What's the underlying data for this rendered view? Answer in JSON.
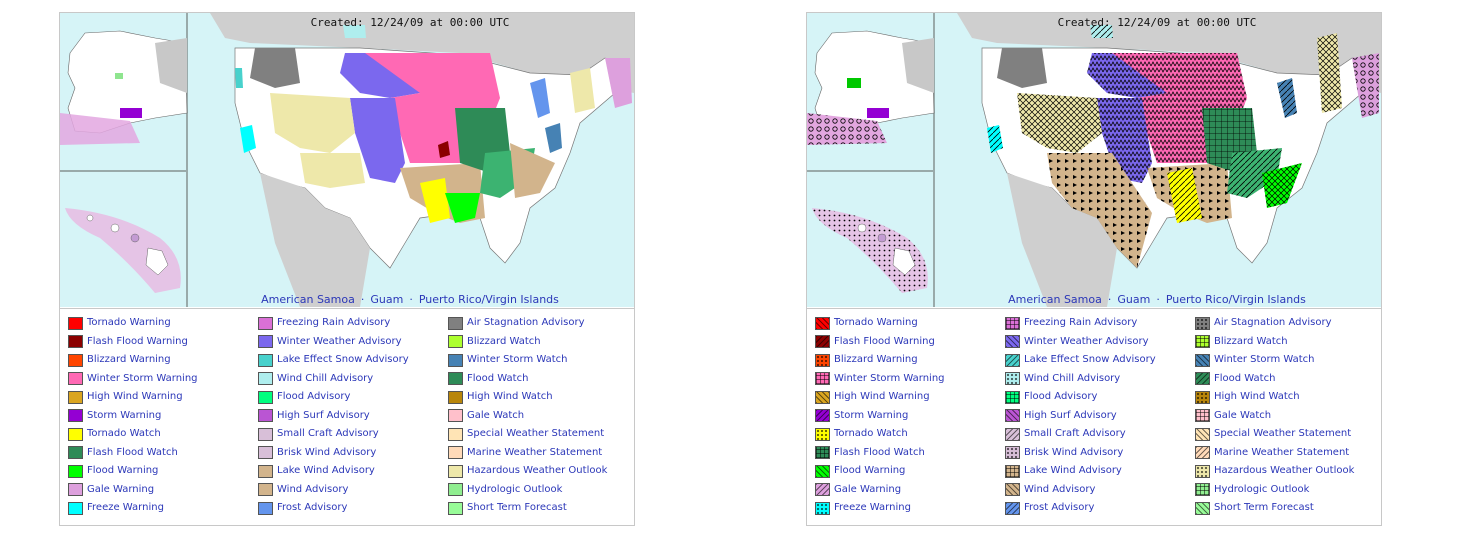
{
  "maps": [
    {
      "id": "solid",
      "created": "Created: 12/24/09 at 00:00 UTC",
      "territories": [
        "American Samoa",
        "Guam",
        "Puerto Rico/Virgin Islands"
      ],
      "pattern_style": "solid"
    },
    {
      "id": "patterned",
      "created": "Created: 12/24/09 at 00:00 UTC",
      "territories": [
        "American Samoa",
        "Guam",
        "Puerto Rico/Virgin Islands"
      ],
      "pattern_style": "hatched"
    }
  ],
  "legend": [
    [
      {
        "label": "Tornado Warning",
        "color": "#ff0000"
      },
      {
        "label": "Flash Flood Warning",
        "color": "#8b0000"
      },
      {
        "label": "Blizzard Warning",
        "color": "#ff4500"
      },
      {
        "label": "Winter Storm Warning",
        "color": "#ff69b4"
      },
      {
        "label": "High Wind Warning",
        "color": "#daa520"
      },
      {
        "label": "Storm Warning",
        "color": "#9400d3"
      },
      {
        "label": "Tornado Watch",
        "color": "#ffff00"
      },
      {
        "label": "Flash Flood Watch",
        "color": "#2e8b57"
      },
      {
        "label": "Flood Warning",
        "color": "#00ff00"
      },
      {
        "label": "Gale Warning",
        "color": "#dda0dd"
      },
      {
        "label": "Freeze Warning",
        "color": "#00ffff"
      }
    ],
    [
      {
        "label": "Freezing Rain Advisory",
        "color": "#da70d6"
      },
      {
        "label": "Winter Weather Advisory",
        "color": "#7b68ee"
      },
      {
        "label": "Lake Effect Snow Advisory",
        "color": "#48d1cc"
      },
      {
        "label": "Wind Chill Advisory",
        "color": "#afeeee"
      },
      {
        "label": "Flood Advisory",
        "color": "#00ff7f"
      },
      {
        "label": "High Surf Advisory",
        "color": "#ba55d3"
      },
      {
        "label": "Small Craft Advisory",
        "color": "#d8bfd8"
      },
      {
        "label": "Brisk Wind Advisory",
        "color": "#d8bfd8"
      },
      {
        "label": "Lake Wind Advisory",
        "color": "#d2b48c"
      },
      {
        "label": "Wind Advisory",
        "color": "#d2b48c"
      },
      {
        "label": "Frost Advisory",
        "color": "#6495ed"
      }
    ],
    [
      {
        "label": "Air Stagnation Advisory",
        "color": "#808080"
      },
      {
        "label": "Blizzard Watch",
        "color": "#adff2f"
      },
      {
        "label": "Winter Storm Watch",
        "color": "#4682b4"
      },
      {
        "label": "Flood Watch",
        "color": "#2e8b57"
      },
      {
        "label": "High Wind Watch",
        "color": "#b8860b"
      },
      {
        "label": "Gale Watch",
        "color": "#ffc0cb"
      },
      {
        "label": "Special Weather Statement",
        "color": "#ffe4b5"
      },
      {
        "label": "Marine Weather Statement",
        "color": "#ffdab9"
      },
      {
        "label": "Hazardous Weather Outlook",
        "color": "#eee8aa"
      },
      {
        "label": "Hydrologic Outlook",
        "color": "#90ee90"
      },
      {
        "label": "Short Term Forecast",
        "color": "#98fb98"
      }
    ]
  ]
}
